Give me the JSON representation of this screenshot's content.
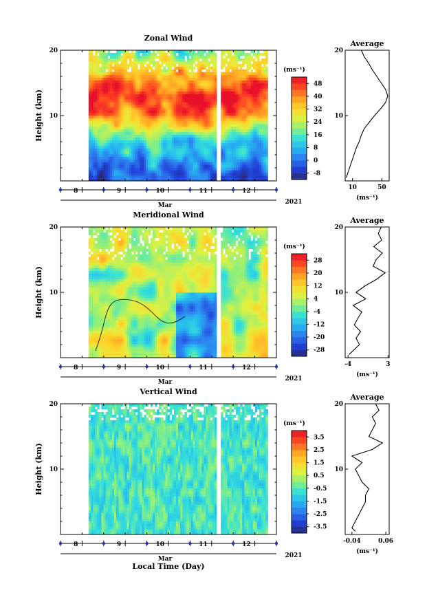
{
  "chart_data": [
    {
      "type": "heatmap",
      "title": "Zonal Wind",
      "ylabel": "Height (km)",
      "ylim": [
        0,
        20
      ],
      "yticks": [
        "10",
        "20"
      ],
      "xlim": [
        7.5,
        12.5
      ],
      "xticks": [
        "8",
        "9",
        "10",
        "11",
        "12"
      ],
      "x_month": "Mar",
      "x_year": "2021",
      "colorbar_unit": "(ms⁻¹)",
      "colorbar_ticks": [
        "-8",
        "0",
        "8",
        "16",
        "24",
        "32",
        "40",
        "48"
      ],
      "colorbar_range": [
        -12,
        52
      ],
      "data_x_range": [
        8.15,
        12.3
      ],
      "data_gap": [
        11.12,
        11.21
      ],
      "profile": {
        "title": "Average",
        "xlabel": "(ms⁻¹)",
        "xticks": [
          "10",
          "50"
        ],
        "xlim": [
          0,
          60
        ],
        "height": [
          0.5,
          1,
          2,
          3,
          4,
          5,
          6,
          7,
          8,
          9,
          10,
          11,
          12,
          13,
          14,
          15,
          16,
          17,
          18,
          19,
          20
        ],
        "values": [
          1,
          3,
          6,
          9,
          12,
          15,
          19,
          22,
          26,
          33,
          40,
          48,
          55,
          58,
          55,
          49,
          43,
          37,
          32,
          26,
          22
        ]
      }
    },
    {
      "type": "heatmap",
      "title": "Meridional Wind",
      "ylabel": "Height (km)",
      "ylim": [
        0,
        20
      ],
      "yticks": [
        "10",
        "20"
      ],
      "xlim": [
        7.5,
        12.5
      ],
      "xticks": [
        "8",
        "9",
        "10",
        "11",
        "12"
      ],
      "x_month": "Mar",
      "x_year": "2021",
      "colorbar_unit": "(ms⁻¹)",
      "colorbar_ticks": [
        "-28",
        "-20",
        "-12",
        "-4",
        "4",
        "12",
        "20",
        "28"
      ],
      "colorbar_range": [
        -32,
        32
      ],
      "data_x_range": [
        8.15,
        12.3
      ],
      "data_gap": [
        11.12,
        11.21
      ],
      "profile": {
        "title": "Average",
        "xlabel": "(ms⁻¹)",
        "xticks": [
          "-4",
          "3"
        ],
        "xlim": [
          -4.5,
          3.2
        ],
        "height": [
          0.5,
          1,
          2,
          3,
          4,
          5,
          6,
          7,
          8,
          9,
          10,
          11,
          12,
          13,
          14,
          15,
          16,
          17,
          18,
          19,
          20
        ],
        "values": [
          -3.8,
          -3.2,
          -2.0,
          -2.6,
          -1.8,
          -2.9,
          -2.3,
          -1.6,
          -3.1,
          -0.9,
          -2.6,
          -1.0,
          1.0,
          2.5,
          0.4,
          0.9,
          2.0,
          0.5,
          1.9,
          1.3,
          1.8
        ]
      }
    },
    {
      "type": "heatmap",
      "title": "Vertical Wind",
      "ylabel": "Height (km)",
      "ylim": [
        0,
        20
      ],
      "yticks": [
        "10",
        "20"
      ],
      "xlim": [
        7.5,
        12.5
      ],
      "xticks": [
        "8",
        "9",
        "10",
        "11",
        "12"
      ],
      "x_month": "Mar",
      "x_year": "2021",
      "xlabel": "Local Time (Day)",
      "colorbar_unit": "(ms⁻¹)",
      "colorbar_ticks": [
        "-3.5",
        "-2.5",
        "-1.5",
        "-0.5",
        "0.5",
        "1.5",
        "2.5",
        "3.5"
      ],
      "colorbar_range": [
        -4,
        4
      ],
      "data_x_range": [
        8.15,
        12.3
      ],
      "data_gap": [
        11.12,
        11.21
      ],
      "profile": {
        "title": "Average",
        "xlabel": "(ms⁻¹)",
        "xticks": [
          "-0.04",
          "0.06"
        ],
        "xlim": [
          -0.06,
          0.07
        ],
        "height": [
          0.5,
          1,
          2,
          3,
          4,
          5,
          6,
          7,
          8,
          9,
          10,
          11,
          12,
          13,
          14,
          15,
          16,
          17,
          18,
          19,
          20
        ],
        "values": [
          -0.03,
          -0.04,
          -0.03,
          -0.02,
          -0.01,
          0.0,
          0.0,
          0.01,
          -0.01,
          -0.02,
          -0.03,
          -0.01,
          -0.04,
          0.02,
          0.05,
          0.01,
          0.02,
          0.03,
          0.02,
          0.04,
          0.03
        ]
      }
    }
  ],
  "colors": {
    "background": "#ffffff",
    "palette": [
      "#2a2a72",
      "#1f3fd6",
      "#2d79ee",
      "#25b5f0",
      "#35e0d8",
      "#8ff07a",
      "#e0f040",
      "#ffd12a",
      "#ff9a22",
      "#ff4a22",
      "#e8102a"
    ],
    "contour": "#000000",
    "tick_marker": "#2233aa"
  }
}
